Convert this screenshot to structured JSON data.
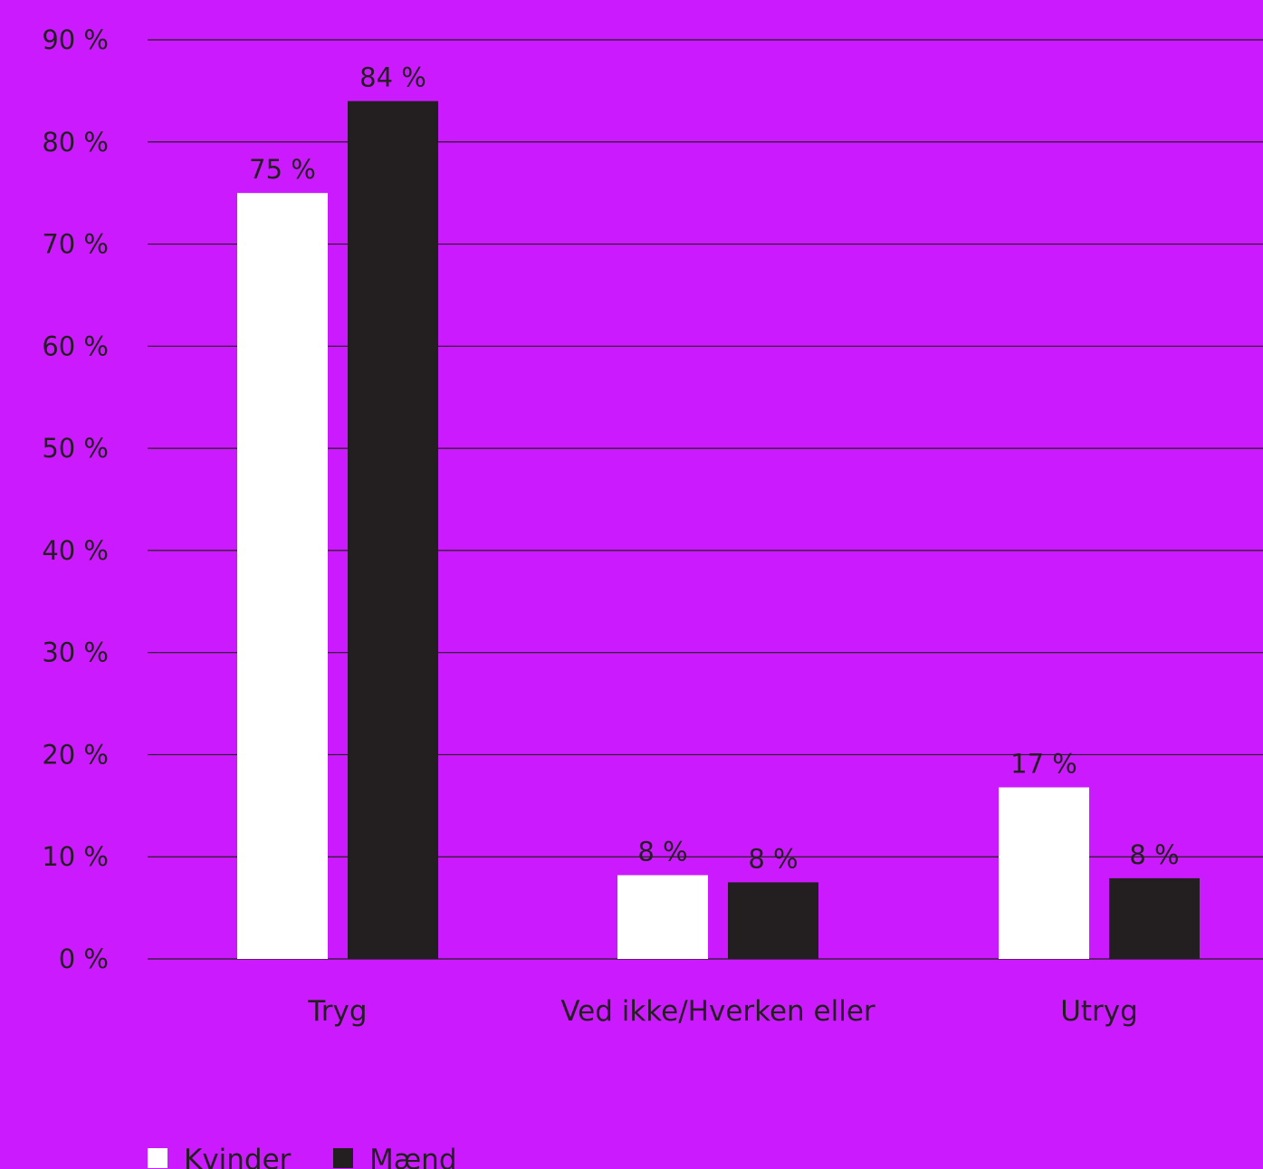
{
  "colors": {
    "background": "#cc1aff",
    "gridline": "#231f20",
    "text": "#231f20",
    "series_kvinder": "#ffffff",
    "series_maend": "#231f20"
  },
  "chart_data": {
    "type": "bar",
    "title": "",
    "xlabel": "",
    "ylabel": "",
    "categories": [
      "Tryg",
      "Ved ikke/Hverken eller",
      "Utryg"
    ],
    "series": [
      {
        "name": "Kvinder",
        "values": [
          75,
          8.2,
          16.8
        ],
        "labels": [
          "75 %",
          "8 %",
          "17 %"
        ]
      },
      {
        "name": "Mænd",
        "values": [
          84,
          7.5,
          7.9
        ],
        "labels": [
          "84 %",
          "8 %",
          "8 %"
        ]
      }
    ],
    "ylim": [
      0,
      90
    ],
    "yticks": [
      0,
      10,
      20,
      30,
      40,
      50,
      60,
      70,
      80,
      90
    ],
    "ytick_labels": [
      "0 %",
      "10 %",
      "20 %",
      "30 %",
      "40 %",
      "50 %",
      "60 %",
      "70 %",
      "80 %",
      "90 %"
    ],
    "grid": true,
    "legend_position": "bottom-left"
  }
}
